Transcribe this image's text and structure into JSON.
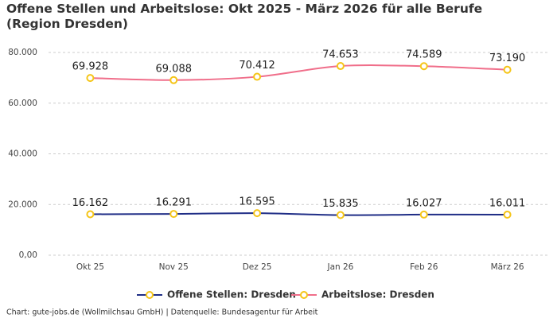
{
  "chart_data": {
    "type": "line",
    "title": "Offene Stellen und Arbeitslose: Okt 2025 - März 2026 für alle Berufe (Region Dresden)",
    "categories": [
      "Okt 25",
      "Nov 25",
      "Dez 25",
      "Jan 26",
      "Feb 26",
      "März 26"
    ],
    "series": [
      {
        "name": "Offene Stellen: Dresden",
        "color": "#1f2d86",
        "values": [
          16162,
          16291,
          16595,
          15835,
          16027,
          16011
        ],
        "value_labels": [
          "16.162",
          "16.291",
          "16.595",
          "15.835",
          "16.027",
          "16.011"
        ]
      },
      {
        "name": "Arbeitslose: Dresden",
        "color": "#f06e8a",
        "values": [
          69928,
          69088,
          70412,
          74653,
          74589,
          73190
        ],
        "value_labels": [
          "69.928",
          "69.088",
          "70.412",
          "74.653",
          "74.589",
          "73.190"
        ]
      }
    ],
    "marker_color": "#f5c518",
    "ylim": [
      0,
      80000
    ],
    "yticks": [
      {
        "value": 0,
        "label": "0,00"
      },
      {
        "value": 20000,
        "label": "20.000"
      },
      {
        "value": 40000,
        "label": "40.000"
      },
      {
        "value": 60000,
        "label": "60.000"
      },
      {
        "value": 80000,
        "label": "80.000"
      }
    ],
    "grid": true,
    "legend": "bottom",
    "footer": "Chart: gute-jobs.de (Wollmilchsau GmbH) | Datenquelle: Bundesagentur für Arbeit"
  }
}
